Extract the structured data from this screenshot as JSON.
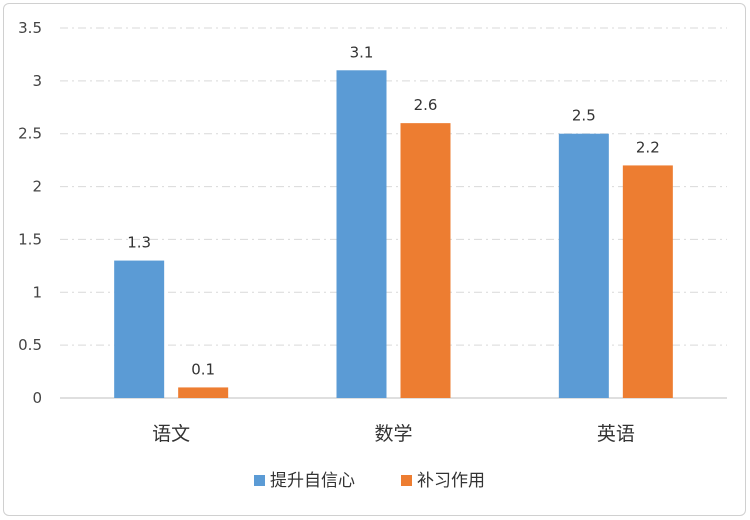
{
  "chart_data": {
    "type": "bar",
    "title": "",
    "xlabel": "",
    "ylabel": "",
    "categories": [
      "语文",
      "数学",
      "英语"
    ],
    "series": [
      {
        "name": "提升自信心",
        "values": [
          1.3,
          3.1,
          2.5
        ],
        "color": "#5B9BD5"
      },
      {
        "name": "补习作用",
        "values": [
          0.1,
          2.6,
          2.2
        ],
        "color": "#ED7D31"
      }
    ],
    "ylim": [
      0,
      3.5
    ],
    "yticks": [
      "0",
      "0.5",
      "1",
      "1.5",
      "2",
      "2.5",
      "3",
      "3.5"
    ],
    "grid": true,
    "legend_position": "bottom"
  }
}
